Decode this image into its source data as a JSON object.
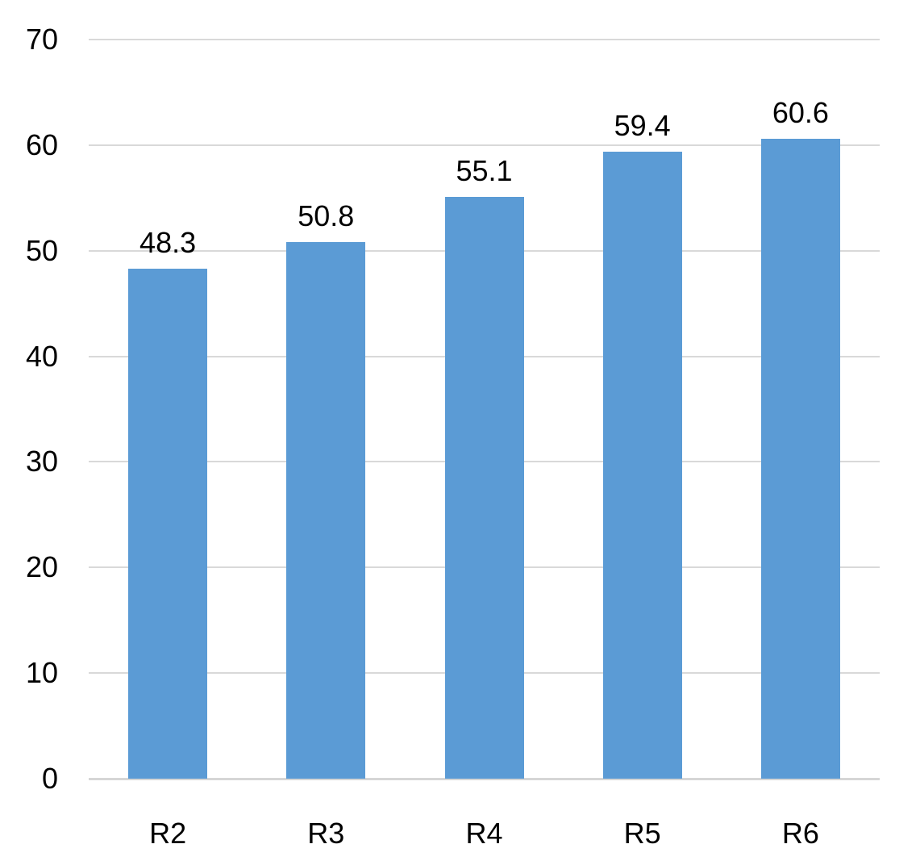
{
  "chart_data": {
    "type": "bar",
    "title": "",
    "xlabel": "",
    "ylabel": "",
    "categories": [
      "R2",
      "R3",
      "R4",
      "R5",
      "R6"
    ],
    "values": [
      48.3,
      50.8,
      55.1,
      59.4,
      60.6
    ],
    "data_labels": [
      "48.3",
      "50.8",
      "55.1",
      "59.4",
      "60.6"
    ],
    "ylim": [
      0,
      70
    ],
    "y_ticks": [
      0,
      10,
      20,
      30,
      40,
      50,
      60,
      70
    ],
    "grid": true,
    "legend": false,
    "colors": {
      "bar": "#5B9BD5",
      "gridline": "#D9D9D9",
      "axis_line": "#D6D6D6",
      "text": "#000000",
      "background": "#FFFFFF"
    }
  }
}
